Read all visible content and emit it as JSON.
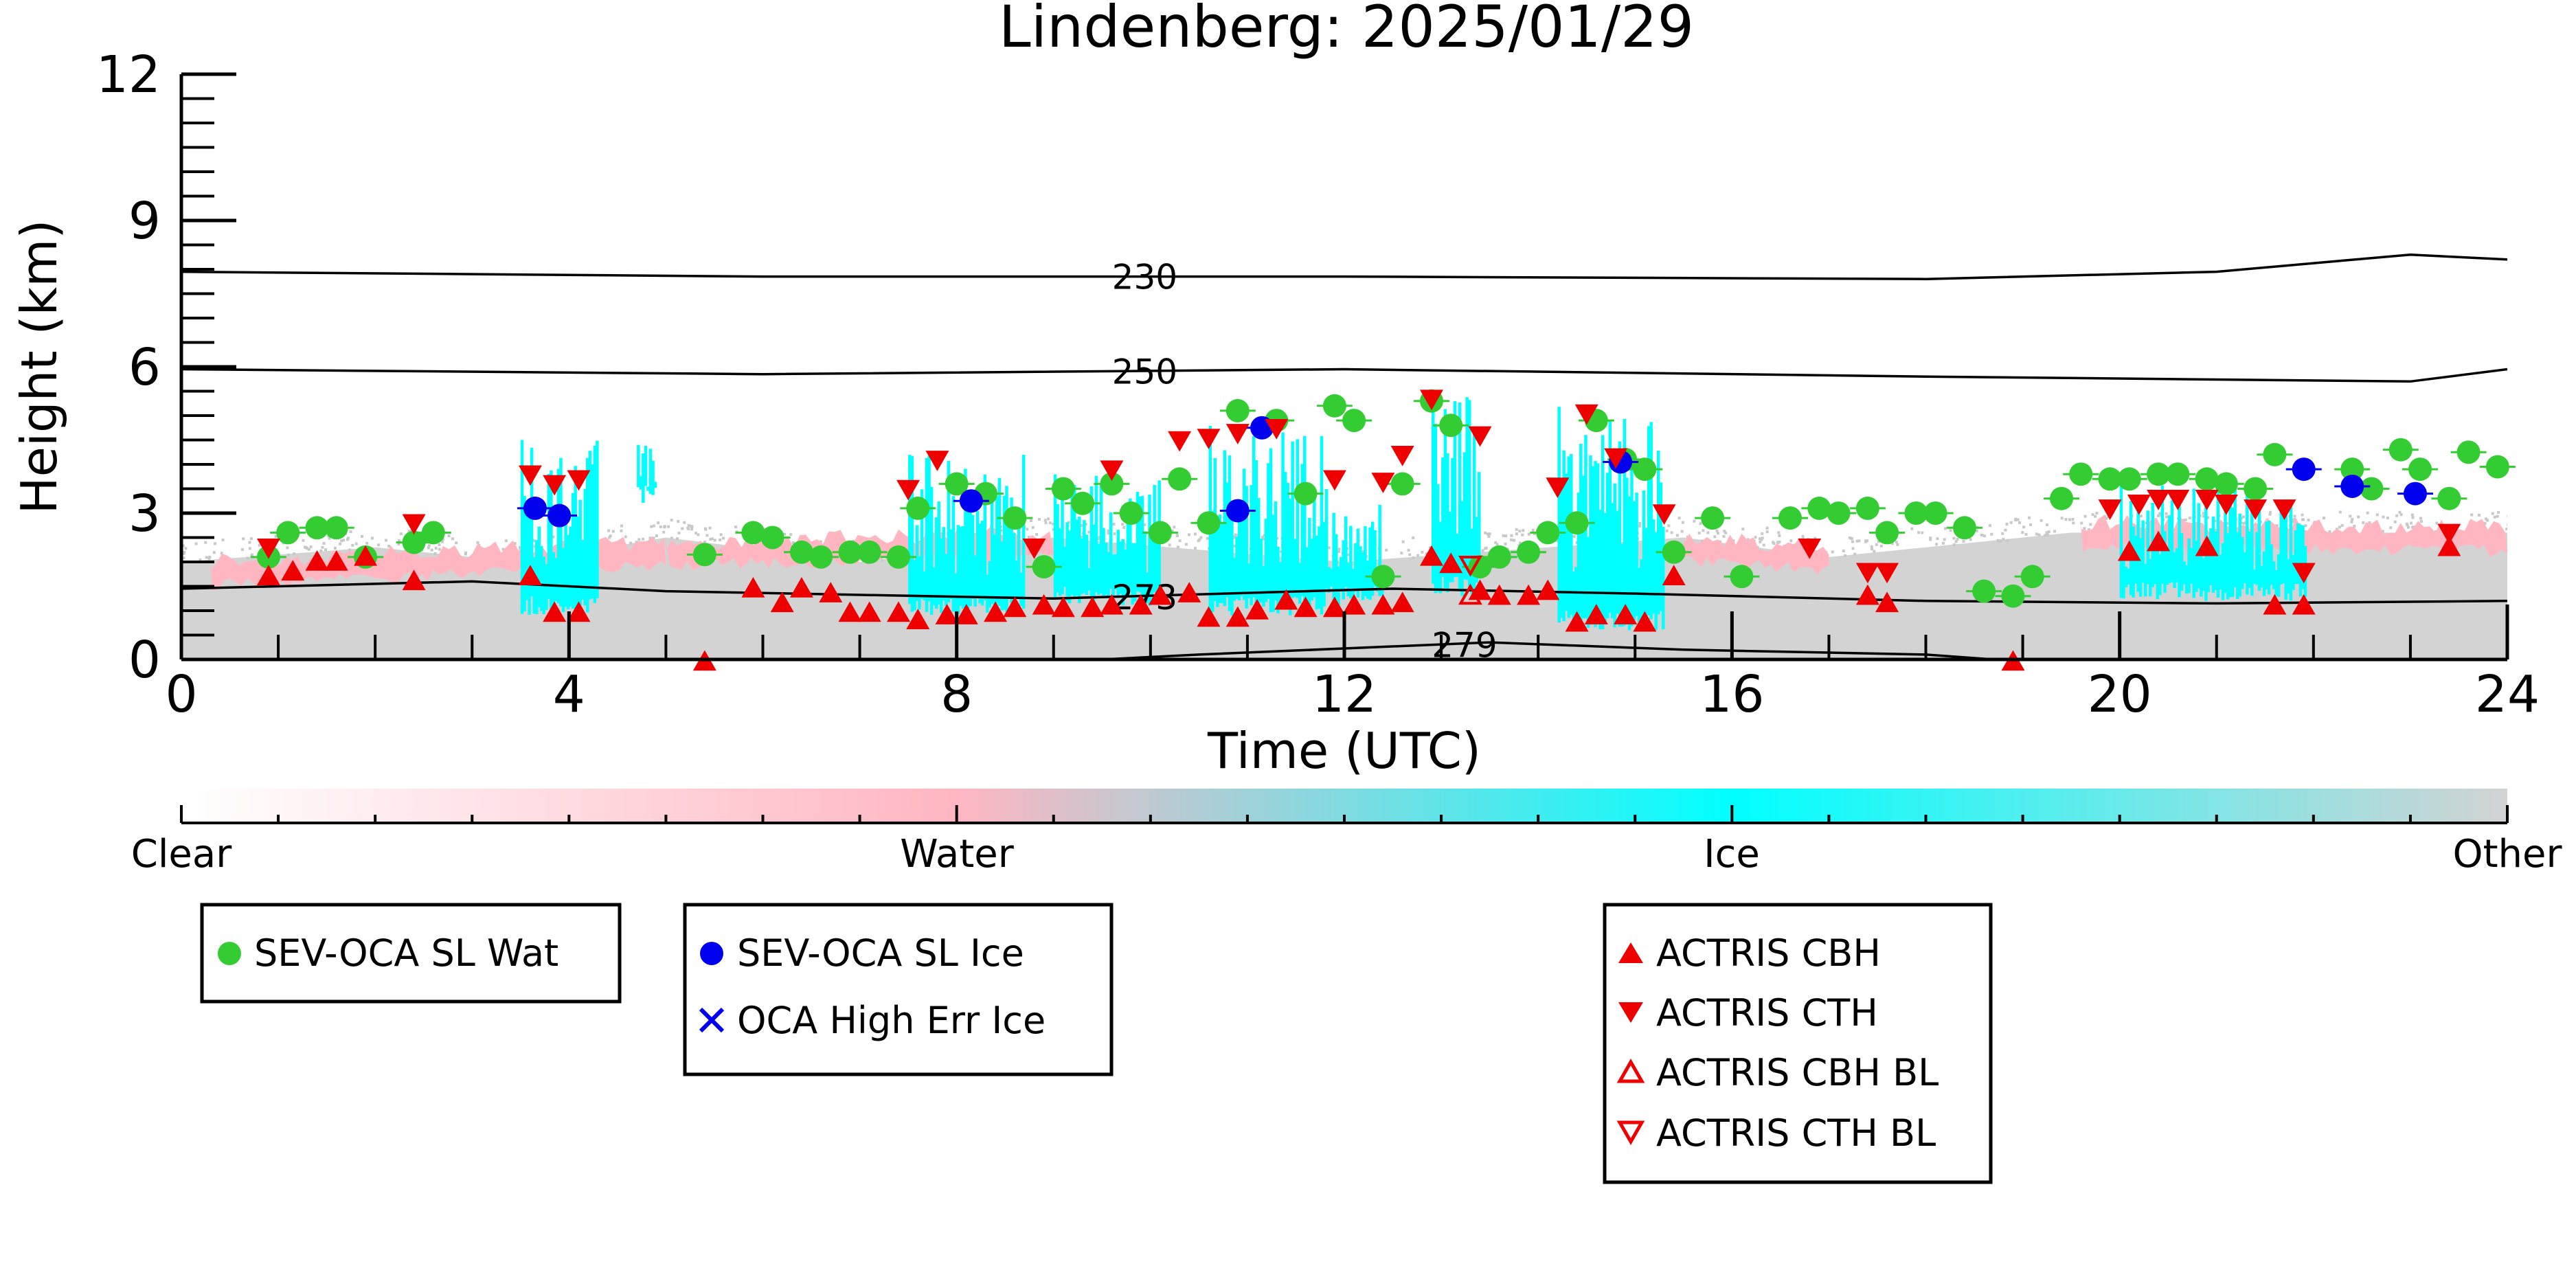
{
  "chart_data": {
    "type": "scatter",
    "title": "Lindenberg: 2025/01/29",
    "xlabel": "Time (UTC)",
    "ylabel": "Height (km)",
    "xlim": [
      0,
      24
    ],
    "ylim": [
      0,
      12
    ],
    "x_ticks": [
      0,
      4,
      8,
      12,
      16,
      20,
      24
    ],
    "y_ticks": [
      0,
      3,
      6,
      9,
      12
    ],
    "grid": false,
    "colors": {
      "wat": "#33cc33",
      "ice": "#0000ee",
      "actris": "#ee0000",
      "cyan": "#00ffff",
      "pink": "#ffb6c1",
      "grey": "#d3d3d3"
    },
    "colorbar": {
      "labels": [
        "Clear",
        "Water",
        "Ice",
        "Other"
      ],
      "stops": [
        "#ffffff",
        "#ffb6c1",
        "#00ffff",
        "#d3d3d3"
      ]
    },
    "classification_regions": [
      {
        "class": "Other",
        "x": [
          0,
          24
        ],
        "y_bottom": 0,
        "y_top": [
          [
            0,
            2.0
          ],
          [
            2,
            2.3
          ],
          [
            3.5,
            2.0
          ],
          [
            5,
            2.5
          ],
          [
            7,
            2.0
          ],
          [
            9,
            2.5
          ],
          [
            12,
            2.0
          ],
          [
            15.5,
            2.5
          ],
          [
            17,
            2.1
          ],
          [
            19.5,
            2.6
          ],
          [
            22,
            2.6
          ],
          [
            24,
            2.6
          ]
        ]
      },
      {
        "class": "Water",
        "segments": [
          [
            0.3,
            2.0,
            5.0,
            2.4
          ],
          [
            5.0,
            2.4,
            9.0,
            2.6
          ],
          [
            15.5,
            2.5,
            17.0,
            2.3
          ],
          [
            19.6,
            2.8,
            24,
            2.7
          ]
        ]
      },
      {
        "class": "Ice",
        "spans": [
          [
            3.5,
            4.3,
            0.9,
            4.5
          ],
          [
            4.7,
            4.9,
            3.2,
            4.4
          ],
          [
            7.5,
            8.7,
            0.9,
            4.2
          ],
          [
            9.0,
            10.1,
            1.1,
            3.8
          ],
          [
            10.6,
            11.8,
            0.9,
            4.8
          ],
          [
            11.8,
            12.4,
            1.1,
            3.5
          ],
          [
            12.9,
            13.4,
            1.3,
            5.4
          ],
          [
            14.2,
            15.3,
            0.6,
            5.2
          ],
          [
            20.0,
            21.9,
            1.2,
            3.6
          ]
        ]
      }
    ],
    "isotherms": [
      {
        "label": "230",
        "label_x": 9.6,
        "points": [
          [
            0,
            7.95
          ],
          [
            6,
            7.85
          ],
          [
            12,
            7.85
          ],
          [
            18,
            7.8
          ],
          [
            21,
            7.95
          ],
          [
            23,
            8.3
          ],
          [
            24,
            8.2
          ]
        ]
      },
      {
        "label": "250",
        "label_x": 9.6,
        "points": [
          [
            0,
            5.95
          ],
          [
            6,
            5.85
          ],
          [
            12,
            5.95
          ],
          [
            18,
            5.8
          ],
          [
            23,
            5.7
          ],
          [
            24,
            5.95
          ]
        ]
      },
      {
        "label": "273",
        "label_x": 9.6,
        "points": [
          [
            0,
            1.45
          ],
          [
            3,
            1.6
          ],
          [
            5,
            1.4
          ],
          [
            9,
            1.25
          ],
          [
            12.5,
            1.45
          ],
          [
            15,
            1.35
          ],
          [
            18,
            1.2
          ],
          [
            21,
            1.15
          ],
          [
            24,
            1.2
          ]
        ]
      },
      {
        "label": "279",
        "label_x": 12.9,
        "points": [
          [
            9.5,
            0.0
          ],
          [
            10.5,
            0.1
          ],
          [
            13.5,
            0.35
          ],
          [
            15.5,
            0.2
          ],
          [
            18,
            0.1
          ],
          [
            18.7,
            0.0
          ]
        ]
      }
    ],
    "series": [
      {
        "name": "SEV-OCA SL Wat",
        "marker": "circle",
        "x": [
          0.9,
          1.1,
          1.4,
          1.6,
          1.9,
          2.4,
          2.6,
          5.4,
          5.9,
          6.1,
          6.4,
          6.6,
          6.9,
          7.1,
          7.4,
          7.6,
          8.0,
          8.3,
          8.6,
          8.9,
          9.1,
          9.3,
          9.6,
          9.8,
          10.1,
          10.3,
          10.6,
          10.9,
          11.3,
          11.6,
          11.9,
          12.1,
          12.4,
          12.6,
          12.9,
          13.1,
          13.4,
          13.6,
          13.9,
          14.1,
          14.4,
          14.6,
          14.9,
          15.1,
          15.4,
          15.8,
          16.1,
          16.6,
          16.9,
          17.1,
          17.4,
          17.6,
          17.9,
          18.1,
          18.4,
          18.6,
          18.9,
          19.1,
          19.4,
          19.6,
          19.9,
          20.1,
          20.4,
          20.6,
          20.9,
          21.1,
          21.4,
          21.6,
          22.4,
          22.6,
          22.9,
          23.1,
          23.4,
          23.6,
          23.9
        ],
        "y": [
          2.1,
          2.6,
          2.7,
          2.7,
          2.1,
          2.4,
          2.6,
          2.15,
          2.6,
          2.5,
          2.2,
          2.1,
          2.2,
          2.2,
          2.1,
          3.1,
          3.6,
          3.4,
          2.9,
          1.9,
          3.5,
          3.2,
          3.6,
          3.0,
          2.6,
          3.7,
          2.8,
          5.1,
          4.9,
          3.4,
          5.2,
          4.9,
          1.7,
          3.6,
          5.3,
          4.8,
          1.9,
          2.1,
          2.2,
          2.6,
          2.8,
          4.9,
          4.1,
          3.9,
          2.2,
          2.9,
          1.7,
          2.9,
          3.1,
          3.0,
          3.1,
          2.6,
          3.0,
          3.0,
          2.7,
          1.4,
          1.3,
          1.7,
          3.3,
          3.8,
          3.7,
          3.7,
          3.8,
          3.8,
          3.7,
          3.6,
          3.5,
          4.2,
          3.9,
          3.5,
          4.3,
          3.9,
          3.3,
          4.25,
          3.95
        ]
      },
      {
        "name": "SEV-OCA SL Ice",
        "marker": "circle",
        "x": [
          3.65,
          3.9,
          8.15,
          10.9,
          11.15,
          14.85,
          21.9,
          22.4,
          23.05
        ],
        "y": [
          3.1,
          2.95,
          3.25,
          3.05,
          4.75,
          4.05,
          3.9,
          3.55,
          3.4
        ]
      },
      {
        "name": "OCA High Err Ice",
        "marker": "x",
        "x": [],
        "y": []
      },
      {
        "name": "ACTRIS CBH",
        "marker": "triangle-up",
        "x": [
          0.9,
          1.15,
          1.4,
          1.6,
          1.9,
          2.4,
          3.6,
          3.85,
          4.1,
          5.4,
          5.9,
          6.2,
          6.4,
          6.7,
          6.9,
          7.1,
          7.4,
          7.6,
          7.9,
          8.1,
          8.4,
          8.6,
          8.9,
          9.1,
          9.4,
          9.6,
          9.9,
          10.1,
          10.4,
          10.6,
          10.9,
          11.1,
          11.4,
          11.6,
          11.9,
          12.1,
          12.4,
          12.6,
          12.9,
          13.1,
          13.4,
          13.6,
          13.9,
          14.1,
          14.4,
          14.6,
          14.9,
          15.1,
          15.4,
          17.4,
          17.6,
          18.9,
          20.1,
          20.4,
          20.9,
          21.6,
          21.9,
          23.4
        ],
        "y": [
          1.7,
          1.8,
          2.0,
          2.0,
          2.1,
          1.6,
          1.7,
          0.95,
          0.95,
          -0.05,
          1.45,
          1.15,
          1.45,
          1.35,
          0.95,
          0.95,
          0.95,
          0.8,
          0.9,
          0.9,
          0.95,
          1.05,
          1.1,
          1.05,
          1.05,
          1.1,
          1.1,
          1.3,
          1.35,
          0.85,
          0.85,
          1.0,
          1.2,
          1.05,
          1.05,
          1.1,
          1.1,
          1.15,
          2.1,
          1.95,
          1.4,
          1.3,
          1.3,
          1.4,
          0.75,
          0.9,
          0.9,
          0.75,
          1.7,
          1.3,
          1.15,
          -0.05,
          2.2,
          2.4,
          2.3,
          1.1,
          1.1,
          2.3
        ]
      },
      {
        "name": "ACTRIS CTH",
        "marker": "triangle-down",
        "x": [
          0.9,
          2.4,
          3.6,
          3.85,
          4.1,
          7.5,
          7.8,
          8.8,
          9.6,
          10.3,
          10.6,
          10.9,
          11.3,
          11.9,
          12.4,
          12.6,
          12.9,
          13.4,
          14.2,
          14.5,
          14.8,
          15.3,
          16.8,
          17.4,
          17.6,
          19.9,
          20.2,
          20.4,
          20.6,
          20.9,
          21.1,
          21.4,
          21.7,
          21.9,
          23.4
        ],
        "y": [
          2.3,
          2.8,
          3.8,
          3.6,
          3.7,
          3.5,
          4.1,
          2.3,
          3.9,
          4.5,
          4.55,
          4.65,
          4.75,
          3.7,
          3.65,
          4.2,
          5.35,
          4.6,
          3.55,
          5.05,
          4.15,
          3.0,
          2.3,
          1.8,
          1.8,
          3.1,
          3.2,
          3.3,
          3.3,
          3.3,
          3.2,
          3.1,
          3.1,
          1.8,
          2.6
        ]
      },
      {
        "name": "ACTRIS CBH BL",
        "marker": "triangle-up-open",
        "x": [
          13.3
        ],
        "y": [
          1.3
        ]
      },
      {
        "name": "ACTRIS CTH BL",
        "marker": "triangle-down-open",
        "x": [
          13.3
        ],
        "y": [
          1.95
        ]
      }
    ]
  }
}
